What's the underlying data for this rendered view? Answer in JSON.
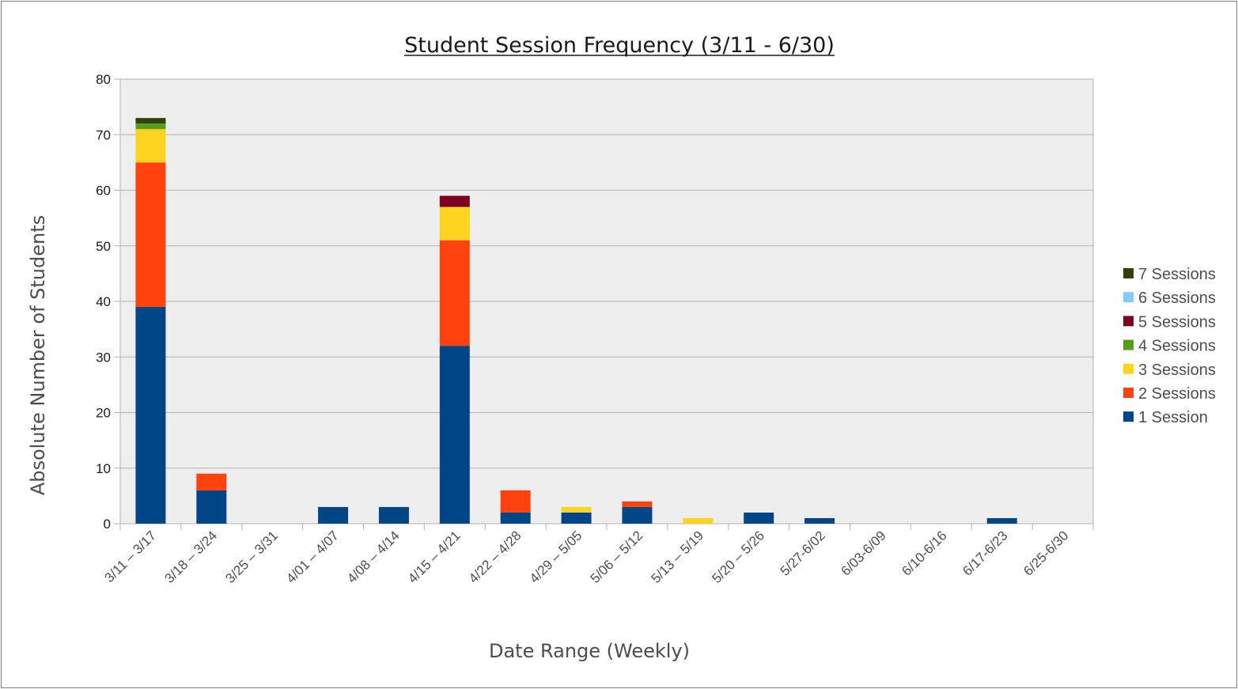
{
  "chart_data": {
    "type": "bar",
    "stacked": true,
    "title": "Student Session Frequency (3/11 - 6/30)",
    "xlabel": "Date Range (Weekly)",
    "ylabel": "Absolute Number of Students",
    "ylim": [
      0,
      80
    ],
    "yticks": [
      0,
      10,
      20,
      30,
      40,
      50,
      60,
      70,
      80
    ],
    "grid": true,
    "legend_position": "right",
    "categories": [
      "3/11 – 3/17",
      "3/18 – 3/24",
      "3/25 – 3/31",
      "4/01 – 4/07",
      "4/08 – 4/14",
      "4/15 – 4/21",
      "4/22 – 4/28",
      "4/29 – 5/05",
      "5/06 – 5/12",
      "5/13 – 5/19",
      "5/20 – 5/26",
      "5/27-6/02",
      "6/03-6/09",
      "6/10-6/16",
      "6/17-6/23",
      "6/25-6/30"
    ],
    "series": [
      {
        "name": "1 Session",
        "color": "#004586",
        "values": [
          39,
          6,
          0,
          3,
          3,
          32,
          2,
          2,
          3,
          0,
          2,
          1,
          0,
          0,
          1,
          0
        ]
      },
      {
        "name": "2 Sessions",
        "color": "#ff420e",
        "values": [
          26,
          3,
          0,
          0,
          0,
          19,
          4,
          0,
          1,
          0,
          0,
          0,
          0,
          0,
          0,
          0
        ]
      },
      {
        "name": "3 Sessions",
        "color": "#ffd320",
        "values": [
          6,
          0,
          0,
          0,
          0,
          6,
          0,
          1,
          0,
          1,
          0,
          0,
          0,
          0,
          0,
          0
        ]
      },
      {
        "name": "4 Sessions",
        "color": "#579d1c",
        "values": [
          1,
          0,
          0,
          0,
          0,
          0,
          0,
          0,
          0,
          0,
          0,
          0,
          0,
          0,
          0,
          0
        ]
      },
      {
        "name": "5 Sessions",
        "color": "#7e0021",
        "values": [
          0,
          0,
          0,
          0,
          0,
          2,
          0,
          0,
          0,
          0,
          0,
          0,
          0,
          0,
          0,
          0
        ]
      },
      {
        "name": "6 Sessions",
        "color": "#83caff",
        "values": [
          0,
          0,
          0,
          0,
          0,
          0,
          0,
          0,
          0,
          0,
          0,
          0,
          0,
          0,
          0,
          0
        ]
      },
      {
        "name": "7 Sessions",
        "color": "#314004",
        "values": [
          1,
          0,
          0,
          0,
          0,
          0,
          0,
          0,
          0,
          0,
          0,
          0,
          0,
          0,
          0,
          0
        ]
      }
    ],
    "colors": {
      "plot_background": "#eeeeee",
      "gridline": "#b3b3b3"
    }
  }
}
